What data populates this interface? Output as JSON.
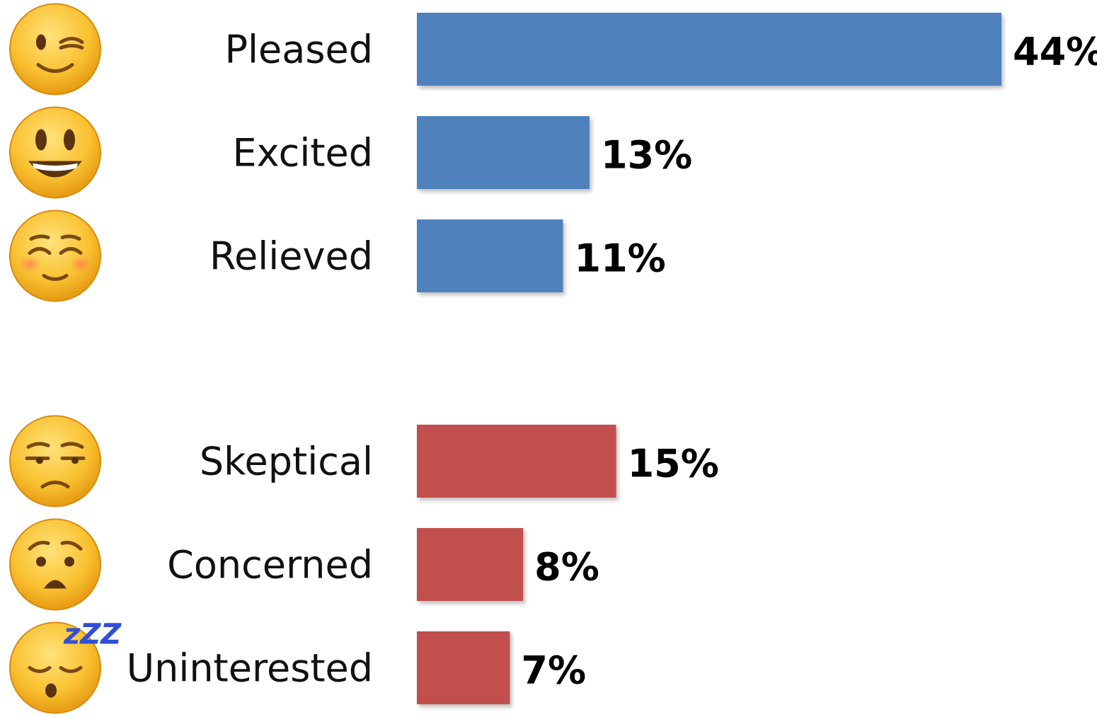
{
  "chart_data": {
    "type": "bar",
    "orientation": "horizontal",
    "xlim": [
      0,
      44
    ],
    "grid": false,
    "legend": "none",
    "groups": [
      {
        "color": "#4f81bd",
        "items": [
          {
            "label": "Pleased",
            "value": 44,
            "value_label": "44%",
            "icon": "winking-face-icon"
          },
          {
            "label": "Excited",
            "value": 13,
            "value_label": "13%",
            "icon": "grinning-face-icon"
          },
          {
            "label": "Relieved",
            "value": 11,
            "value_label": "11%",
            "icon": "smiling-blush-face-icon"
          }
        ]
      },
      {
        "color": "#c0504d",
        "items": [
          {
            "label": "Skeptical",
            "value": 15,
            "value_label": "15%",
            "icon": "unamused-face-icon"
          },
          {
            "label": "Concerned",
            "value": 8,
            "value_label": "8%",
            "icon": "worried-face-icon"
          },
          {
            "label": "Uninterested",
            "value": 7,
            "value_label": "7%",
            "icon": "sleeping-face-icon",
            "icon_text": "zZZ"
          }
        ]
      }
    ]
  }
}
